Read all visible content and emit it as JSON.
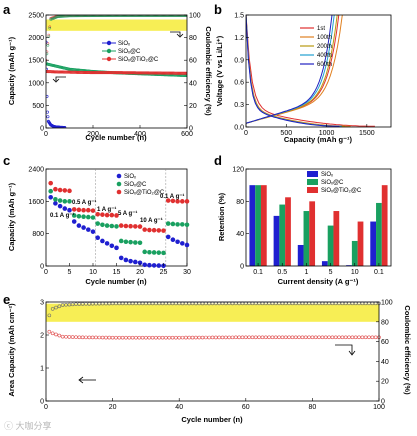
{
  "panels": [
    {
      "letter": "a"
    },
    {
      "letter": "b"
    },
    {
      "letter": "c"
    },
    {
      "letter": "d"
    },
    {
      "letter": "e"
    }
  ],
  "watermark": "ⓒ 大咖分享",
  "chart_data": [
    {
      "panel": "a",
      "type": "scatter",
      "xlabel": "Cycle number (n)",
      "ylabel": "Capacity (mAh g⁻¹)",
      "y2label": "Coulombic efficiency (%)",
      "xlim": [
        0,
        600
      ],
      "ylim": [
        0,
        2500
      ],
      "y2lim": [
        0,
        100
      ],
      "xticks": [
        0,
        200,
        400,
        600
      ],
      "yticks": [
        0,
        500,
        1000,
        1500,
        2000,
        2500
      ],
      "y2ticks": [
        0,
        20,
        40,
        60,
        80,
        100
      ],
      "legend_position": "center-right",
      "highlight_band": [
        2150,
        2400
      ],
      "series": [
        {
          "name": "SiOₓ",
          "color": "#1f1fd0",
          "x": [
            0,
            5,
            10,
            20,
            30,
            40,
            60,
            80
          ],
          "y": [
            1900,
            400,
            150,
            70,
            40,
            25,
            15,
            10
          ]
        },
        {
          "name": "SiOₓ@C",
          "color": "#19a060",
          "x": [
            0,
            50,
            100,
            200,
            300,
            400,
            500,
            600
          ],
          "y": [
            1420,
            1360,
            1300,
            1250,
            1220,
            1200,
            1180,
            1160
          ]
        },
        {
          "name": "SiOₓ@TiO₂@C",
          "color": "#e03030",
          "x": [
            0,
            50,
            100,
            200,
            300,
            400,
            500,
            600
          ],
          "y": [
            1250,
            1240,
            1235,
            1225,
            1225,
            1220,
            1215,
            1210
          ]
        }
      ],
      "ce_series": [
        {
          "color": "#e03030",
          "x": [
            0,
            20,
            50,
            100,
            200,
            300,
            400,
            500,
            600
          ],
          "y": [
            60,
            97,
            99,
            99.5,
            99.6,
            99.7,
            99.7,
            99.7,
            99.7
          ]
        },
        {
          "color": "#19a060",
          "x": [
            0,
            20,
            50,
            100,
            200,
            300,
            400,
            500,
            600
          ],
          "y": [
            58,
            96,
            98.5,
            99.2,
            99.4,
            99.5,
            99.5,
            99.5,
            99.5
          ]
        }
      ]
    },
    {
      "panel": "b",
      "type": "line",
      "xlabel": "Capacity (mAh g⁻¹)",
      "ylabel": "Voltage (V vs Li/Li⁺)",
      "xlim": [
        0,
        1800
      ],
      "ylim": [
        0,
        1.5
      ],
      "xticks": [
        0,
        500,
        1000,
        1500
      ],
      "yticks": [
        0.0,
        0.3,
        0.6,
        0.9,
        1.2,
        1.5
      ],
      "series": [
        {
          "name": "1st",
          "color": "#e03030",
          "end_cap": 1600
        },
        {
          "name": "100th",
          "color": "#e08020",
          "end_cap": 1300
        },
        {
          "name": "200th",
          "color": "#b89a10",
          "end_cap": 1230
        },
        {
          "name": "400th",
          "color": "#20a0d0",
          "end_cap": 1190
        },
        {
          "name": "600th",
          "color": "#2020c0",
          "end_cap": 1160
        }
      ]
    },
    {
      "panel": "c",
      "type": "scatter",
      "xlabel": "Cycle number (n)",
      "ylabel": "Capacity (mAh g⁻¹)",
      "xlim": [
        0,
        30
      ],
      "ylim": [
        0,
        2400
      ],
      "xticks": [
        0,
        5,
        10,
        15,
        20,
        25,
        30
      ],
      "yticks": [
        0,
        800,
        1600,
        2400
      ],
      "rate_labels": [
        "0.1 A g⁻¹",
        "0.5 A g⁻¹",
        "1 A g⁻¹",
        "5 A g⁻¹",
        "10 A g⁻¹",
        "0.1 A g⁻¹"
      ],
      "series": [
        {
          "name": "SiOₓ",
          "color": "#1f1fd0",
          "y": [
            1700,
            1550,
            1480,
            1420,
            1380,
            1100,
            1000,
            950,
            900,
            850,
            700,
            620,
            560,
            500,
            450,
            200,
            150,
            120,
            100,
            80,
            30,
            20,
            15,
            10,
            5,
            720,
            650,
            600,
            560,
            520
          ]
        },
        {
          "name": "SiOₓ@C",
          "color": "#19a060",
          "y": [
            1850,
            1650,
            1620,
            1600,
            1600,
            1250,
            1230,
            1220,
            1210,
            1200,
            1050,
            1020,
            1000,
            990,
            980,
            620,
            600,
            590,
            580,
            575,
            350,
            340,
            335,
            330,
            325,
            1050,
            1040,
            1030,
            1030,
            1020
          ]
        },
        {
          "name": "SiOₓ@TiO₂@C",
          "color": "#e03030",
          "y": [
            2050,
            1900,
            1880,
            1870,
            1860,
            1400,
            1390,
            1380,
            1380,
            1370,
            1280,
            1270,
            1260,
            1260,
            1250,
            1000,
            990,
            985,
            980,
            975,
            900,
            890,
            885,
            880,
            875,
            1620,
            1610,
            1600,
            1600,
            1600
          ]
        }
      ]
    },
    {
      "panel": "d",
      "type": "bar",
      "xlabel": "Current density (A g⁻¹)",
      "ylabel": "Retention (%)",
      "ylim": [
        0,
        120
      ],
      "yticks": [
        0,
        40,
        80,
        120
      ],
      "categories": [
        "0.1",
        "0.5",
        "1",
        "5",
        "10",
        "0.1"
      ],
      "series": [
        {
          "name": "SiOₓ",
          "color": "#1f1fd0",
          "values": [
            100,
            62,
            26,
            6,
            1,
            55
          ]
        },
        {
          "name": "SiOₓ@C",
          "color": "#19a060",
          "values": [
            100,
            76,
            68,
            50,
            31,
            78
          ]
        },
        {
          "name": "SiOₓ@TiO₂@C",
          "color": "#e03030",
          "values": [
            100,
            85,
            80,
            68,
            55,
            100
          ]
        }
      ]
    },
    {
      "panel": "e",
      "type": "scatter",
      "xlabel": "Cycle number (n)",
      "ylabel": "Area Capacity (mAh cm⁻²)",
      "y2label": "Coulombic efficiency (%)",
      "xlim": [
        0,
        100
      ],
      "ylim": [
        0,
        3
      ],
      "y2lim": [
        0,
        100
      ],
      "xticks": [
        0,
        20,
        40,
        60,
        80,
        100
      ],
      "yticks": [
        0,
        1,
        2,
        3
      ],
      "y2ticks": [
        0,
        20,
        40,
        60,
        80,
        100
      ],
      "highlight_band": [
        2.4,
        2.95
      ],
      "series": [
        {
          "name": "Area capacity",
          "color": "#e05050",
          "x": [
            0,
            2,
            5,
            10,
            20,
            40,
            60,
            80,
            100
          ],
          "y": [
            2.15,
            2.05,
            1.95,
            1.93,
            1.92,
            1.92,
            1.93,
            1.93,
            1.93
          ]
        },
        {
          "name": "Coulombic efficiency",
          "color": "#707070",
          "x": [
            0,
            2,
            5,
            10,
            20,
            40,
            60,
            80,
            100
          ],
          "y": [
            80,
            93,
            97,
            98,
            98.5,
            98.5,
            98.6,
            98.6,
            98.6
          ]
        }
      ]
    }
  ]
}
